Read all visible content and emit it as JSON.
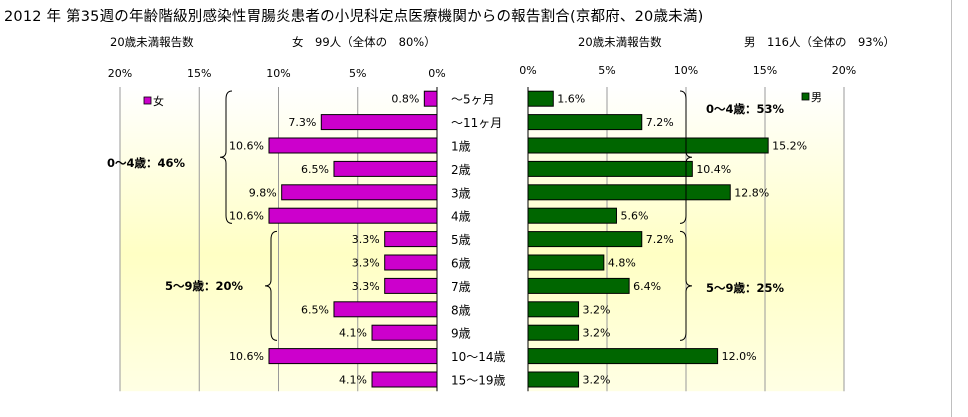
{
  "title": "2012 年 第35週の年齢階級別感染性胃腸炎患者の小児科定点医療機関からの報告割合(京都府、20歳未満)",
  "left_header": {
    "label": "20歳未満報告数",
    "summary": "女　99人（全体の　80%）"
  },
  "right_header": {
    "label": "20歳未満報告数",
    "summary": "男　116人（全体の　93%）"
  },
  "chart_data": [
    {
      "type": "bar",
      "orientation": "horizontal",
      "direction": "right-to-left",
      "series": [
        {
          "name": "女",
          "color": "#cc00cc",
          "values": [
            0.8,
            7.3,
            10.6,
            6.5,
            9.8,
            10.6,
            3.3,
            3.3,
            3.3,
            6.5,
            4.1,
            10.6,
            4.1
          ]
        }
      ],
      "value_labels": [
        "0.8%",
        "7.3%",
        "10.6%",
        "6.5%",
        "9.8%",
        "10.6%",
        "3.3%",
        "3.3%",
        "3.3%",
        "6.5%",
        "4.1%",
        "10.6%",
        "4.1%"
      ],
      "ticks": [
        0,
        5,
        10,
        15,
        20
      ],
      "tick_labels": [
        "0%",
        "5%",
        "10%",
        "15%",
        "20%"
      ],
      "xlim": [
        0,
        20
      ],
      "legend": {
        "label": "女",
        "position": "top-left"
      },
      "annotations": [
        "0～4歳：46%",
        "5～9歳：20%"
      ],
      "background": "yellow gradient",
      "grid": true
    },
    {
      "type": "bar",
      "orientation": "horizontal",
      "direction": "left-to-right",
      "series": [
        {
          "name": "男",
          "color": "#006600",
          "values": [
            1.6,
            7.2,
            15.2,
            10.4,
            12.8,
            5.6,
            7.2,
            4.8,
            6.4,
            3.2,
            3.2,
            12.0,
            3.2
          ]
        }
      ],
      "value_labels": [
        "1.6%",
        "7.2%",
        "15.2%",
        "10.4%",
        "12.8%",
        "5.6%",
        "7.2%",
        "4.8%",
        "6.4%",
        "3.2%",
        "3.2%",
        "12.0%",
        "3.2%"
      ],
      "ticks": [
        0,
        5,
        10,
        15,
        20
      ],
      "tick_labels": [
        "0%",
        "5%",
        "10%",
        "15%",
        "20%"
      ],
      "xlim": [
        0,
        20
      ],
      "legend": {
        "label": "男",
        "position": "top-right"
      },
      "annotations": [
        "0～4歳：53%",
        "5～9歳：25%"
      ],
      "background": "yellow gradient",
      "grid": true
    }
  ],
  "categories": [
    "～5ヶ月",
    "～11ヶ月",
    "1歳",
    "2歳",
    "3歳",
    "4歳",
    "5歳",
    "6歳",
    "7歳",
    "8歳",
    "9歳",
    "10～14歳",
    "15～19歳"
  ]
}
